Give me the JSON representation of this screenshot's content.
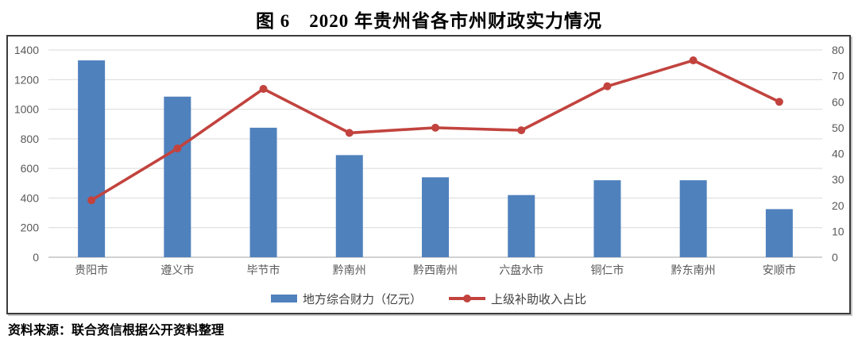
{
  "page": {
    "title": "图 6　2020 年贵州省各市州财政实力情况",
    "source_note": "资料来源：联合资信根据公开资料整理"
  },
  "chart_data": {
    "type": "combo-bar-line",
    "title": "图 6　2020 年贵州省各市州财政实力情况",
    "categories": [
      "贵阳市",
      "遵义市",
      "毕节市",
      "黔南州",
      "黔西南州",
      "六盘水市",
      "铜仁市",
      "黔东南州",
      "安顺市"
    ],
    "series": [
      {
        "name": "地方综合财力（亿元）",
        "type": "bar",
        "axis": "left",
        "color": "#4f81bd",
        "values": [
          1330,
          1085,
          875,
          690,
          540,
          420,
          520,
          520,
          325
        ]
      },
      {
        "name": "上级补助收入占比",
        "type": "line",
        "axis": "right",
        "color": "#c2433e",
        "values": [
          22,
          42,
          65,
          48,
          50,
          49,
          66,
          76,
          60
        ]
      }
    ],
    "left_axis": {
      "min": 0,
      "max": 1400,
      "step": 200,
      "tick_labels": [
        "0",
        "200",
        "400",
        "600",
        "800",
        "1000",
        "1200",
        "1400"
      ]
    },
    "right_axis": {
      "min": 0,
      "max": 80,
      "step": 10,
      "tick_labels": [
        "0",
        "10",
        "20",
        "30",
        "40",
        "50",
        "60",
        "70",
        "80"
      ]
    },
    "grid": true,
    "legend_position": "bottom"
  },
  "colors": {
    "bar": "#4f81bd",
    "line": "#c2433e",
    "grid": "#d9d9d9",
    "axis_line": "#a6a6a6",
    "axis_text": "#595959",
    "category_text": "#595959",
    "border": "#3b3b3b"
  }
}
